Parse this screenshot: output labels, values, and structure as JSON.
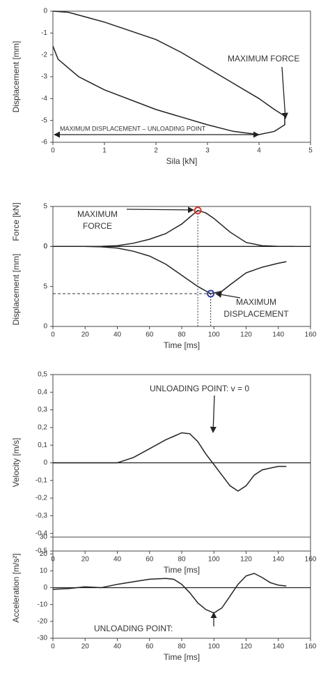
{
  "chart_data": [
    {
      "type": "line",
      "xlabel": "Sila [kN]",
      "ylabel": "Displacement [mm]",
      "xlim": [
        0,
        5
      ],
      "xticks": [
        0,
        1,
        2,
        3,
        4,
        5
      ],
      "ylim": [
        -6,
        0
      ],
      "yticks": [
        0,
        -1,
        -2,
        -3,
        -4,
        -5,
        -6
      ],
      "series": [
        {
          "color": "#222222",
          "x": [
            0,
            0.3,
            1,
            1.5,
            2,
            2.5,
            3,
            3.5,
            4,
            4.3,
            4.5,
            4.5,
            4.3,
            4.0,
            3.5,
            3,
            2,
            1,
            0.5,
            0.1,
            0
          ],
          "values": [
            0,
            -0.05,
            -0.5,
            -0.9,
            -1.3,
            -1.9,
            -2.6,
            -3.3,
            -4.0,
            -4.5,
            -4.8,
            -5.2,
            -5.5,
            -5.65,
            -5.5,
            -5.2,
            -4.5,
            -3.6,
            -3.0,
            -2.2,
            -1.6
          ]
        }
      ],
      "annotations": [
        "MAXIMUM FORCE",
        "MAXIMUM DISPLACEMENT – UNLOADING POINT"
      ]
    },
    {
      "type": "line",
      "xlabel": "Time [ms]",
      "ylabel": "Force [kN]",
      "y2label": "Displacement [mm]",
      "xlim": [
        0,
        160
      ],
      "xticks": [
        0,
        20,
        40,
        60,
        80,
        100,
        120,
        140,
        160
      ],
      "ylim": [
        -10,
        5
      ],
      "yticks": [
        0,
        5
      ],
      "y2lim": [
        10,
        -5
      ],
      "y2ticks": [
        0,
        5,
        {
          "value": 10,
          "label": "0"
        }
      ],
      "series": [
        {
          "color": "#222222",
          "x": [
            0,
            10,
            20,
            30,
            40,
            50,
            60,
            70,
            80,
            90,
            95,
            100,
            110,
            120,
            130,
            140,
            150
          ],
          "values": [
            0,
            0,
            0,
            0.02,
            0.1,
            0.4,
            0.9,
            1.6,
            2.8,
            4.5,
            4.2,
            3.5,
            1.8,
            0.5,
            0.1,
            0,
            0
          ]
        },
        {
          "color": "#222222",
          "axis": "y2",
          "x": [
            0,
            10,
            20,
            30,
            40,
            50,
            60,
            70,
            80,
            90,
            98,
            105,
            110,
            120,
            130,
            140,
            145
          ],
          "values": [
            0,
            0,
            0,
            0.05,
            0.2,
            0.6,
            1.2,
            2.2,
            3.6,
            5.0,
            5.9,
            5.6,
            4.8,
            3.3,
            2.6,
            2.1,
            1.9
          ]
        }
      ],
      "annotations": [
        [
          "MAXIMUM",
          "FORCE"
        ],
        [
          "MAXIMUM",
          "DISPLACEMENT"
        ]
      ]
    },
    {
      "type": "line",
      "xlabel": "Time [ms]",
      "ylabel": "Velocity [m/s]",
      "xlim": [
        0,
        160
      ],
      "xticks": [
        0,
        20,
        40,
        60,
        80,
        100,
        120,
        140,
        160
      ],
      "ylim": [
        -0.5,
        0.5
      ],
      "yticks": [
        {
          "value": 0.5,
          "label": "0,5"
        },
        {
          "value": 0.4,
          "label": "0,4"
        },
        {
          "value": 0.3,
          "label": "0,3"
        },
        {
          "value": 0.2,
          "label": "0,2"
        },
        {
          "value": 0.1,
          "label": "0,1"
        },
        0,
        {
          "value": -0.1,
          "label": "-0,1"
        },
        {
          "value": -0.2,
          "label": "-0,2"
        },
        {
          "value": -0.3,
          "label": "-0,3"
        },
        {
          "value": -0.4,
          "label": "-0,4"
        },
        {
          "value": -0.5,
          "label": "-0,5"
        }
      ],
      "series": [
        {
          "color": "#222222",
          "x": [
            0,
            40,
            50,
            60,
            70,
            80,
            85,
            90,
            95,
            100,
            105,
            110,
            115,
            120,
            125,
            130,
            140,
            145
          ],
          "values": [
            0,
            0,
            0.03,
            0.08,
            0.13,
            0.17,
            0.165,
            0.12,
            0.05,
            -0.01,
            -0.07,
            -0.13,
            -0.16,
            -0.13,
            -0.07,
            -0.04,
            -0.02,
            -0.02
          ]
        }
      ],
      "annotations": [
        "UNLOADING POINT: v = 0"
      ]
    },
    {
      "type": "line",
      "xlabel": "Time [ms]",
      "ylabel": "Acceleration [m/s²]",
      "xlim": [
        0,
        160
      ],
      "xticks": [
        0,
        20,
        40,
        60,
        80,
        100,
        120,
        140,
        160
      ],
      "ylim": [
        -30,
        30
      ],
      "yticks": [
        30,
        20,
        10,
        0,
        -10,
        -20,
        -30
      ],
      "series": [
        {
          "color": "#222222",
          "x": [
            0,
            10,
            20,
            30,
            40,
            50,
            60,
            70,
            75,
            80,
            85,
            90,
            95,
            100,
            105,
            110,
            115,
            120,
            125,
            130,
            135,
            140,
            145
          ],
          "values": [
            -1,
            -0.5,
            0.5,
            0,
            2,
            3.5,
            5,
            5.5,
            5,
            2,
            -3,
            -9,
            -13,
            -15,
            -12,
            -5,
            2,
            7,
            8.5,
            6,
            3,
            1.5,
            1
          ]
        }
      ],
      "annotations": [
        "UNLOADING POINT:"
      ]
    }
  ]
}
